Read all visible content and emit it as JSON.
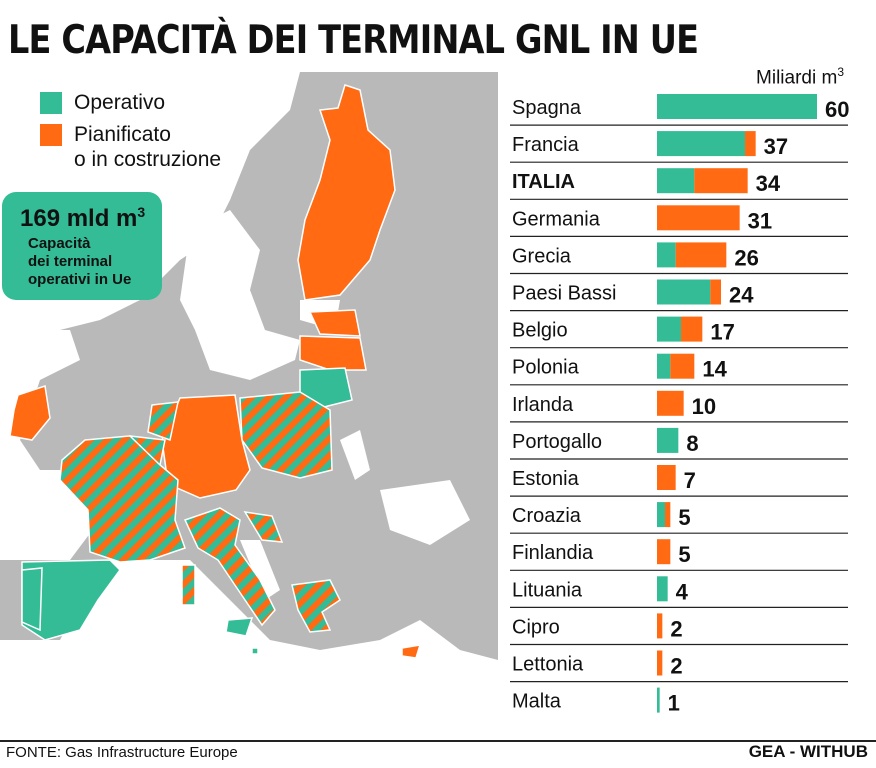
{
  "title": "LE CAPACITÀ DEI TERMINAL GNL IN UE",
  "unit_label": "Miliardi m",
  "unit_sup": "3",
  "legend": {
    "operativo": "Operativo",
    "pianificato_line1": "Pianificato",
    "pianificato_line2": "o in costruzione"
  },
  "info_box": {
    "value": "169 mld m",
    "value_sup": "3",
    "line1": "Capacità",
    "line2": "dei terminal",
    "line3": "operativi in Ue"
  },
  "colors": {
    "operativo": "#33bc96",
    "pianificato": "#ff6a13",
    "land": "#b9b9b9",
    "border": "#ffffff"
  },
  "chart_data": {
    "type": "bar",
    "orientation": "horizontal",
    "stacked": true,
    "unit": "Miliardi m3",
    "categories": [
      "Spagna",
      "Francia",
      "ITALIA",
      "Germania",
      "Grecia",
      "Paesi Bassi",
      "Belgio",
      "Polonia",
      "Irlanda",
      "Portogallo",
      "Estonia",
      "Croazia",
      "Finlandia",
      "Lituania",
      "Cipro",
      "Lettonia",
      "Malta"
    ],
    "totals": [
      60,
      37,
      34,
      31,
      26,
      24,
      17,
      14,
      10,
      8,
      7,
      5,
      5,
      4,
      2,
      2,
      1
    ],
    "series": [
      {
        "name": "Operativo",
        "color": "#33bc96",
        "values": [
          60,
          33,
          14,
          0,
          7,
          20,
          9,
          5,
          0,
          8,
          0,
          3,
          0,
          4,
          0,
          0,
          1
        ]
      },
      {
        "name": "Pianificato o in costruzione",
        "color": "#ff6a13",
        "values": [
          0,
          4,
          20,
          31,
          19,
          4,
          8,
          9,
          10,
          0,
          7,
          2,
          5,
          0,
          2,
          2,
          0
        ]
      }
    ],
    "xlim": [
      0,
      60
    ],
    "grid": false,
    "highlight": "ITALIA"
  },
  "source": "FONTE: Gas Infrastructure Europe",
  "credit": "GEA - WITHUB"
}
